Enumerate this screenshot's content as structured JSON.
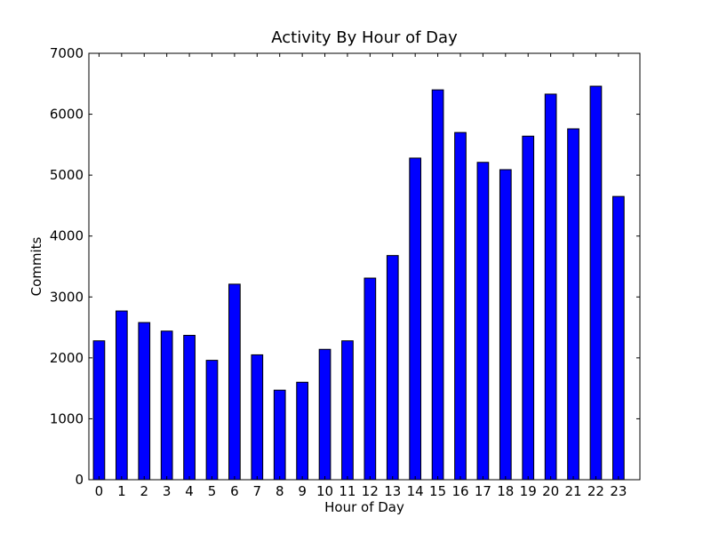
{
  "chart_data": {
    "type": "bar",
    "title": "Activity By Hour of Day",
    "xlabel": "Hour of Day",
    "ylabel": "Commits",
    "categories": [
      "0",
      "1",
      "2",
      "3",
      "4",
      "5",
      "6",
      "7",
      "8",
      "9",
      "10",
      "11",
      "12",
      "13",
      "14",
      "15",
      "16",
      "17",
      "18",
      "19",
      "20",
      "21",
      "22",
      "23"
    ],
    "values": [
      2280,
      2770,
      2580,
      2440,
      2370,
      1960,
      3210,
      2050,
      1470,
      1600,
      2140,
      2280,
      3310,
      3680,
      5280,
      6400,
      5700,
      5210,
      5090,
      5640,
      6330,
      5760,
      6460,
      4650
    ],
    "ylim": [
      0,
      7000
    ],
    "yticks": [
      "0",
      "1000",
      "2000",
      "3000",
      "4000",
      "5000",
      "6000",
      "7000"
    ],
    "grid": false,
    "bar_color": "#0000ff",
    "edge_color": "#000000"
  }
}
